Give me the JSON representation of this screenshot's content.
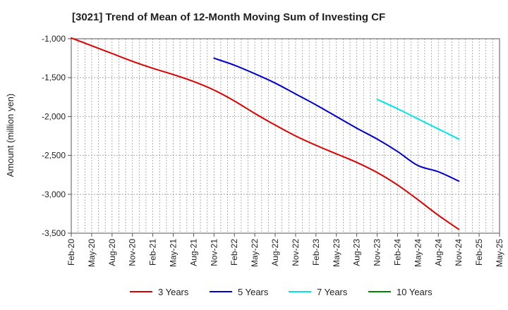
{
  "chart_data": {
    "type": "line",
    "title": "[3021]  Trend of Mean of 12-Month Moving Sum of Investing CF",
    "xlabel": "",
    "ylabel": "Amount (million yen)",
    "ylim": [
      -3500,
      -1000
    ],
    "yticks": [
      -1000,
      -1500,
      -2000,
      -2500,
      -3000,
      -3500
    ],
    "ytick_labels": [
      "-1,000",
      "-1,500",
      "-2,000",
      "-2,500",
      "-3,000",
      "-3,500"
    ],
    "x_start": "Feb-20",
    "x_end": "May-25",
    "x_tick_labels": [
      "Feb-20",
      "May-20",
      "Aug-20",
      "Nov-20",
      "Feb-21",
      "May-21",
      "Aug-21",
      "Nov-21",
      "Feb-22",
      "May-22",
      "Aug-22",
      "Nov-22",
      "Feb-23",
      "May-23",
      "Aug-23",
      "Nov-23",
      "Feb-24",
      "May-24",
      "Aug-24",
      "Nov-24",
      "Feb-25",
      "May-25"
    ],
    "grid": true,
    "legend_position": "bottom",
    "series": [
      {
        "name": "3 Years",
        "color": "#dd0000",
        "points": [
          [
            "Feb-20",
            -990
          ],
          [
            "May-20",
            -1090
          ],
          [
            "Aug-20",
            -1190
          ],
          [
            "Nov-20",
            -1290
          ],
          [
            "Feb-21",
            -1380
          ],
          [
            "May-21",
            -1460
          ],
          [
            "Aug-21",
            -1550
          ],
          [
            "Nov-21",
            -1660
          ],
          [
            "Feb-22",
            -1800
          ],
          [
            "May-22",
            -1960
          ],
          [
            "Aug-22",
            -2110
          ],
          [
            "Nov-22",
            -2250
          ],
          [
            "Feb-23",
            -2370
          ],
          [
            "May-23",
            -2480
          ],
          [
            "Aug-23",
            -2590
          ],
          [
            "Nov-23",
            -2720
          ],
          [
            "Feb-24",
            -2880
          ],
          [
            "May-24",
            -3070
          ],
          [
            "Aug-24",
            -3270
          ],
          [
            "Nov-24",
            -3450
          ]
        ]
      },
      {
        "name": "5 Years",
        "color": "#0000cc",
        "points": [
          [
            "Nov-21",
            -1250
          ],
          [
            "Feb-22",
            -1340
          ],
          [
            "May-22",
            -1450
          ],
          [
            "Aug-22",
            -1570
          ],
          [
            "Nov-22",
            -1710
          ],
          [
            "Feb-23",
            -1850
          ],
          [
            "May-23",
            -2000
          ],
          [
            "Aug-23",
            -2150
          ],
          [
            "Nov-23",
            -2290
          ],
          [
            "Feb-24",
            -2450
          ],
          [
            "May-24",
            -2630
          ],
          [
            "Aug-24",
            -2710
          ],
          [
            "Nov-24",
            -2830
          ]
        ]
      },
      {
        "name": "7 Years",
        "color": "#00e5e5",
        "points": [
          [
            "Nov-23",
            -1780
          ],
          [
            "Feb-24",
            -1900
          ],
          [
            "May-24",
            -2030
          ],
          [
            "Aug-24",
            -2160
          ],
          [
            "Nov-24",
            -2290
          ]
        ]
      },
      {
        "name": "10 Years",
        "color": "#008800",
        "points": []
      }
    ]
  }
}
